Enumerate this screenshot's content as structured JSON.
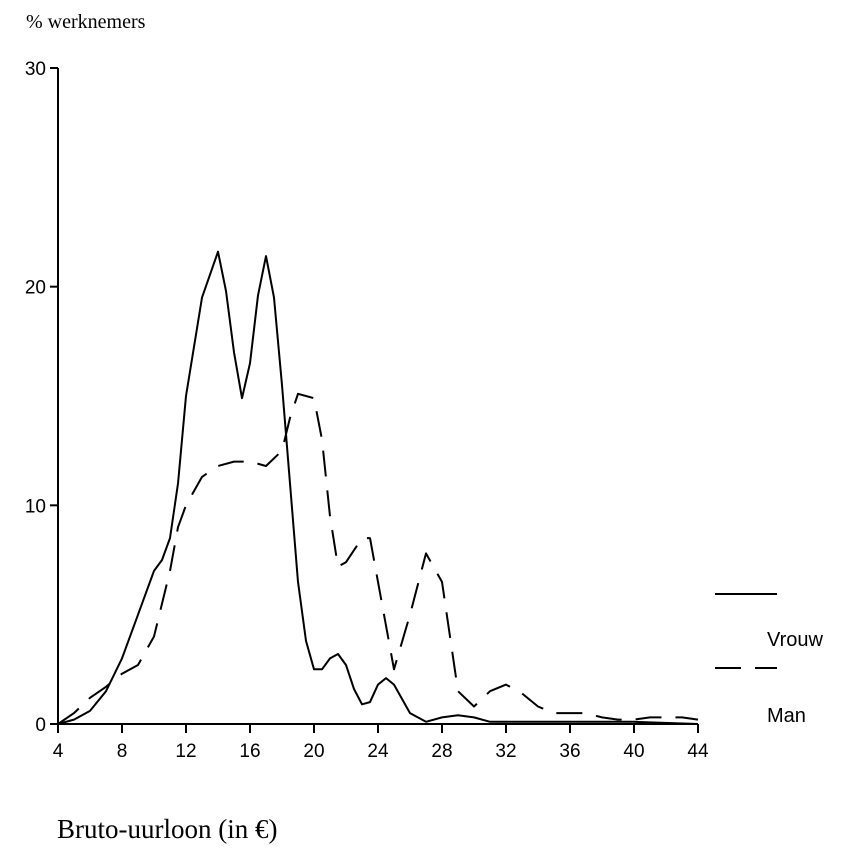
{
  "chart_data": {
    "type": "line",
    "xlabel": "Bruto-uurloon (in €)",
    "ylabel": "% werknemers",
    "xlim": [
      4,
      44
    ],
    "ylim": [
      0,
      30
    ],
    "x_ticks": [
      4,
      8,
      12,
      16,
      20,
      24,
      28,
      32,
      36,
      40,
      44
    ],
    "y_ticks": [
      0,
      10,
      20,
      30
    ],
    "grid": false,
    "legend_position": "right",
    "series": [
      {
        "name": "Vrouw",
        "style": "solid",
        "color": "#000000",
        "points": [
          [
            4,
            0
          ],
          [
            5,
            0.2
          ],
          [
            6,
            0.6
          ],
          [
            7,
            1.5
          ],
          [
            8,
            3.0
          ],
          [
            9,
            5.0
          ],
          [
            10,
            7.0
          ],
          [
            10.5,
            7.5
          ],
          [
            11,
            8.5
          ],
          [
            11.5,
            11.0
          ],
          [
            12,
            15.0
          ],
          [
            13,
            19.5
          ],
          [
            14,
            21.6
          ],
          [
            14.5,
            19.8
          ],
          [
            15,
            17.0
          ],
          [
            15.5,
            14.9
          ],
          [
            16,
            16.5
          ],
          [
            16.5,
            19.6
          ],
          [
            17,
            21.4
          ],
          [
            17.5,
            19.5
          ],
          [
            18,
            15.5
          ],
          [
            18.5,
            11.0
          ],
          [
            19,
            6.5
          ],
          [
            19.5,
            3.8
          ],
          [
            20,
            2.5
          ],
          [
            20.5,
            2.5
          ],
          [
            21,
            3.0
          ],
          [
            21.5,
            3.2
          ],
          [
            22,
            2.7
          ],
          [
            22.5,
            1.6
          ],
          [
            23,
            0.9
          ],
          [
            23.5,
            1.0
          ],
          [
            24,
            1.8
          ],
          [
            24.5,
            2.1
          ],
          [
            25,
            1.8
          ],
          [
            26,
            0.5
          ],
          [
            27,
            0.1
          ],
          [
            28,
            0.3
          ],
          [
            29,
            0.4
          ],
          [
            30,
            0.3
          ],
          [
            31,
            0.1
          ],
          [
            32,
            0.1
          ],
          [
            36,
            0.1
          ],
          [
            40,
            0.1
          ],
          [
            44,
            0.0
          ]
        ]
      },
      {
        "name": "Man",
        "style": "dashed",
        "color": "#000000",
        "points": [
          [
            4,
            0
          ],
          [
            5,
            0.5
          ],
          [
            6,
            1.2
          ],
          [
            7,
            1.7
          ],
          [
            8,
            2.3
          ],
          [
            9,
            2.7
          ],
          [
            10,
            4.0
          ],
          [
            11,
            7.0
          ],
          [
            11.5,
            9.0
          ],
          [
            12,
            10.0
          ],
          [
            13,
            11.3
          ],
          [
            14,
            11.8
          ],
          [
            15,
            12.0
          ],
          [
            16,
            12.0
          ],
          [
            17,
            11.8
          ],
          [
            18,
            12.5
          ],
          [
            18.5,
            14.0
          ],
          [
            19,
            15.1
          ],
          [
            20,
            14.9
          ],
          [
            20.5,
            13.0
          ],
          [
            21,
            9.5
          ],
          [
            21.5,
            7.2
          ],
          [
            22,
            7.4
          ],
          [
            23,
            8.5
          ],
          [
            23.5,
            8.5
          ],
          [
            24,
            6.5
          ],
          [
            25,
            2.5
          ],
          [
            26,
            5.0
          ],
          [
            27,
            7.8
          ],
          [
            28,
            6.5
          ],
          [
            28.5,
            4.0
          ],
          [
            29,
            1.5
          ],
          [
            30,
            0.8
          ],
          [
            31,
            1.5
          ],
          [
            32,
            1.8
          ],
          [
            33,
            1.4
          ],
          [
            34,
            0.8
          ],
          [
            35,
            0.5
          ],
          [
            36,
            0.5
          ],
          [
            37,
            0.5
          ],
          [
            38,
            0.3
          ],
          [
            39,
            0.2
          ],
          [
            40,
            0.2
          ],
          [
            41,
            0.3
          ],
          [
            42,
            0.3
          ],
          [
            43,
            0.3
          ],
          [
            44,
            0.2
          ]
        ]
      }
    ]
  }
}
